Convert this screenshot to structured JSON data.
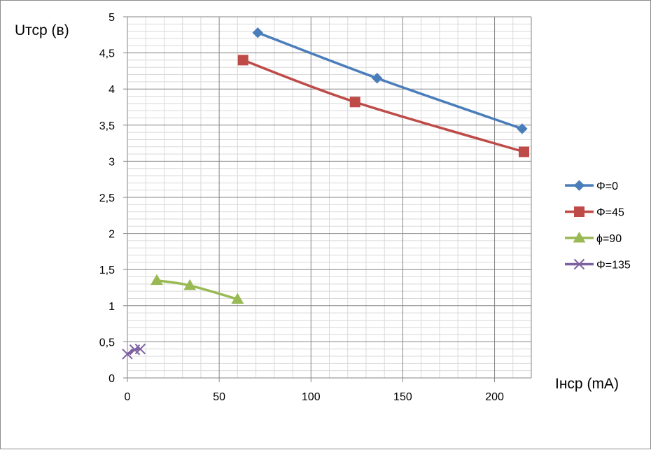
{
  "chart_data": {
    "type": "line",
    "title": "",
    "xlabel": "Iнср (mA)",
    "ylabel": "Uтср (в)",
    "xlim": [
      0,
      220
    ],
    "ylim": [
      0,
      5
    ],
    "x_major_step": 50,
    "x_minor_step": 10,
    "y_major_step": 0.5,
    "y_minor_step": 0.1,
    "x_tick_labels": [
      "0",
      "50",
      "100",
      "150",
      "200"
    ],
    "y_tick_labels": [
      "0",
      "0,5",
      "1",
      "1,5",
      "2",
      "2,5",
      "3",
      "3,5",
      "4",
      "4,5",
      "5"
    ],
    "grid": true,
    "legend_position": "right",
    "series": [
      {
        "name": "Φ=0",
        "color": "#4a7ebb",
        "marker": "diamond",
        "points": [
          [
            71,
            4.78
          ],
          [
            136,
            4.15
          ],
          [
            215,
            3.45
          ]
        ]
      },
      {
        "name": "Φ=45",
        "color": "#be4b48",
        "marker": "square",
        "points": [
          [
            63,
            4.4
          ],
          [
            124,
            3.82
          ],
          [
            216,
            3.13
          ]
        ]
      },
      {
        "name": "ϕ=90",
        "color": "#98b954",
        "marker": "triangle",
        "points": [
          [
            16,
            1.35
          ],
          [
            34,
            1.28
          ],
          [
            60,
            1.09
          ]
        ]
      },
      {
        "name": "Φ=135",
        "color": "#7d60a0",
        "marker": "x",
        "points": [
          [
            0,
            0.33
          ],
          [
            4,
            0.39
          ],
          [
            7,
            0.4
          ]
        ]
      }
    ]
  }
}
